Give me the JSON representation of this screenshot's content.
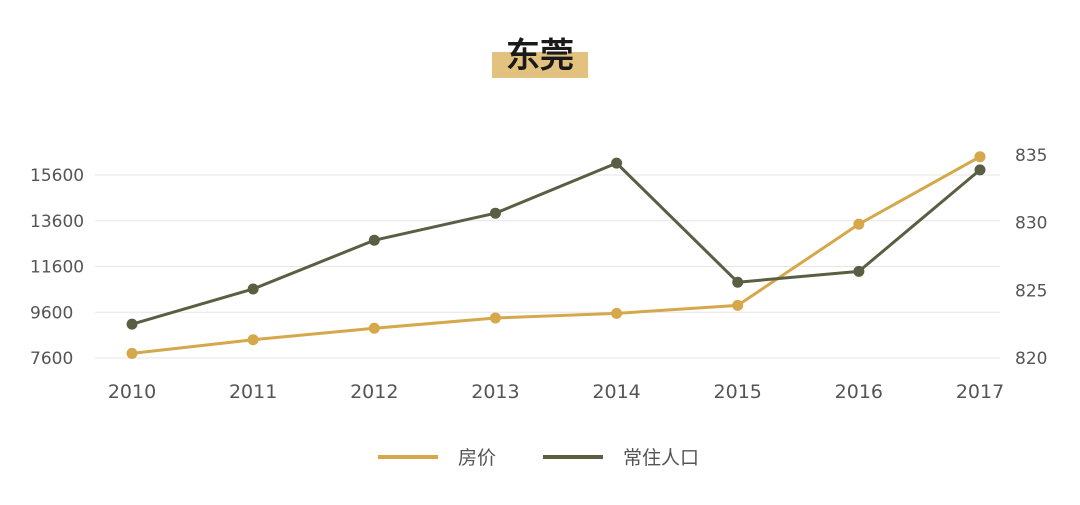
{
  "chart_data": {
    "type": "line",
    "title": "东莞",
    "categories": [
      "2010",
      "2011",
      "2012",
      "2013",
      "2014",
      "2015",
      "2016",
      "2017"
    ],
    "y_left": {
      "ticks": [
        "7600",
        "9600",
        "11600",
        "13600",
        "15600"
      ],
      "range": [
        7600,
        15600
      ]
    },
    "y_right": {
      "ticks": [
        "820",
        "825",
        "830",
        "835"
      ],
      "range": [
        820,
        835
      ]
    },
    "series": [
      {
        "name": "房价",
        "axis": "left",
        "color": "#d4a84b",
        "values": [
          7800,
          8400,
          8900,
          9350,
          9550,
          9900,
          13450,
          16400
        ]
      },
      {
        "name": "常住人口",
        "axis": "right",
        "color": "#5a5f44",
        "values": [
          822.5,
          825.1,
          828.7,
          830.7,
          834.4,
          825.6,
          826.4,
          833.9
        ]
      }
    ],
    "grid": true,
    "legend": "bottom-center"
  }
}
